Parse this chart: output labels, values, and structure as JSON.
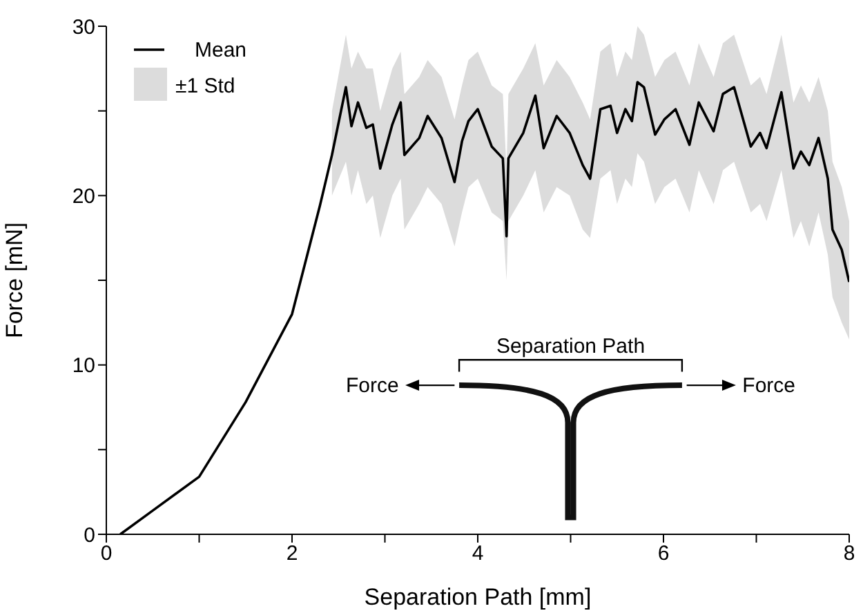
{
  "chart_data": {
    "type": "line",
    "xlabel": "Separation Path [mm]",
    "ylabel": "Force [mN]",
    "xlim": [
      0,
      8
    ],
    "ylim": [
      0,
      30
    ],
    "xticks": [
      0,
      {
        "value": 1,
        "label": null
      },
      2,
      {
        "value": 3,
        "label": null
      },
      4,
      {
        "value": 5,
        "label": null
      },
      6,
      {
        "value": 7,
        "label": null
      },
      8
    ],
    "yticks": [
      0,
      {
        "value": 5,
        "label": null
      },
      10,
      {
        "value": 15,
        "label": null
      },
      20,
      {
        "value": 25,
        "label": null
      },
      30
    ],
    "grid": false,
    "legend": "top left",
    "line_style": "solid",
    "marker": "none",
    "annotations": [
      "±1 Std",
      "Separation Path",
      "Force",
      "Force"
    ],
    "series": [
      {
        "name": "Mean",
        "color": "#000000",
        "x": [
          0.15,
          0.5,
          1.0,
          1.5,
          2.0,
          2.3,
          2.43,
          2.58,
          2.64,
          2.71,
          2.8,
          2.87,
          2.95,
          3.08,
          3.17,
          3.21,
          3.37,
          3.46,
          3.61,
          3.75,
          3.83,
          3.9,
          4.0,
          4.15,
          4.27,
          4.31,
          4.33,
          4.49,
          4.62,
          4.71,
          4.85,
          4.99,
          5.13,
          5.21,
          5.32,
          5.43,
          5.5,
          5.59,
          5.66,
          5.72,
          5.79,
          5.91,
          6.01,
          6.13,
          6.28,
          6.38,
          6.54,
          6.64,
          6.76,
          6.94,
          7.04,
          7.11,
          7.27,
          7.4,
          7.48,
          7.57,
          7.67,
          7.77,
          7.82,
          7.92,
          8.0
        ],
        "values": [
          0,
          1.4,
          3.4,
          7.8,
          13.0,
          19.4,
          22.4,
          26.4,
          24.1,
          25.5,
          24.0,
          24.2,
          21.6,
          24.2,
          25.5,
          22.4,
          23.4,
          24.7,
          23.4,
          20.8,
          23.2,
          24.4,
          25.1,
          22.9,
          22.2,
          17.6,
          22.2,
          23.7,
          25.9,
          22.8,
          24.7,
          23.7,
          21.8,
          21.0,
          25.1,
          25.3,
          23.7,
          25.1,
          24.4,
          26.7,
          26.4,
          23.6,
          24.5,
          25.1,
          23.0,
          25.5,
          23.8,
          26.0,
          26.4,
          22.9,
          23.7,
          22.8,
          26.1,
          21.6,
          22.6,
          21.8,
          23.4,
          21.0,
          18.0,
          16.8,
          14.9
        ],
        "lower": [
          null,
          null,
          null,
          null,
          null,
          null,
          20.0,
          22.0,
          20.0,
          21.5,
          19.5,
          20.0,
          17.5,
          20.0,
          21.0,
          18.0,
          19.5,
          20.5,
          19.5,
          17.0,
          19.0,
          20.5,
          21.0,
          19.0,
          18.5,
          15.0,
          18.5,
          20.0,
          21.5,
          19.0,
          20.5,
          20.0,
          18.0,
          17.5,
          21.0,
          21.5,
          19.5,
          21.0,
          20.5,
          22.5,
          22.0,
          19.5,
          20.5,
          21.0,
          19.0,
          21.5,
          19.5,
          21.5,
          22.0,
          19.0,
          19.5,
          18.5,
          21.5,
          17.5,
          18.5,
          17.0,
          19.0,
          16.5,
          14.0,
          12.5,
          11.5
        ],
        "upper": [
          null,
          null,
          null,
          null,
          null,
          null,
          25.0,
          29.5,
          27.5,
          28.5,
          27.5,
          27.5,
          25.0,
          27.5,
          28.5,
          26.0,
          27.0,
          28.0,
          27.0,
          24.5,
          26.5,
          28.0,
          28.5,
          26.5,
          26.0,
          21.5,
          26.0,
          27.5,
          29.0,
          26.5,
          28.0,
          27.0,
          25.5,
          24.5,
          28.5,
          29.0,
          27.0,
          28.5,
          28.0,
          30.0,
          29.5,
          27.0,
          28.0,
          28.5,
          26.5,
          29.0,
          27.0,
          29.0,
          29.5,
          26.5,
          27.0,
          26.0,
          29.5,
          25.5,
          26.5,
          25.5,
          27.0,
          25.0,
          22.0,
          20.5,
          18.5
        ]
      }
    ]
  }
}
